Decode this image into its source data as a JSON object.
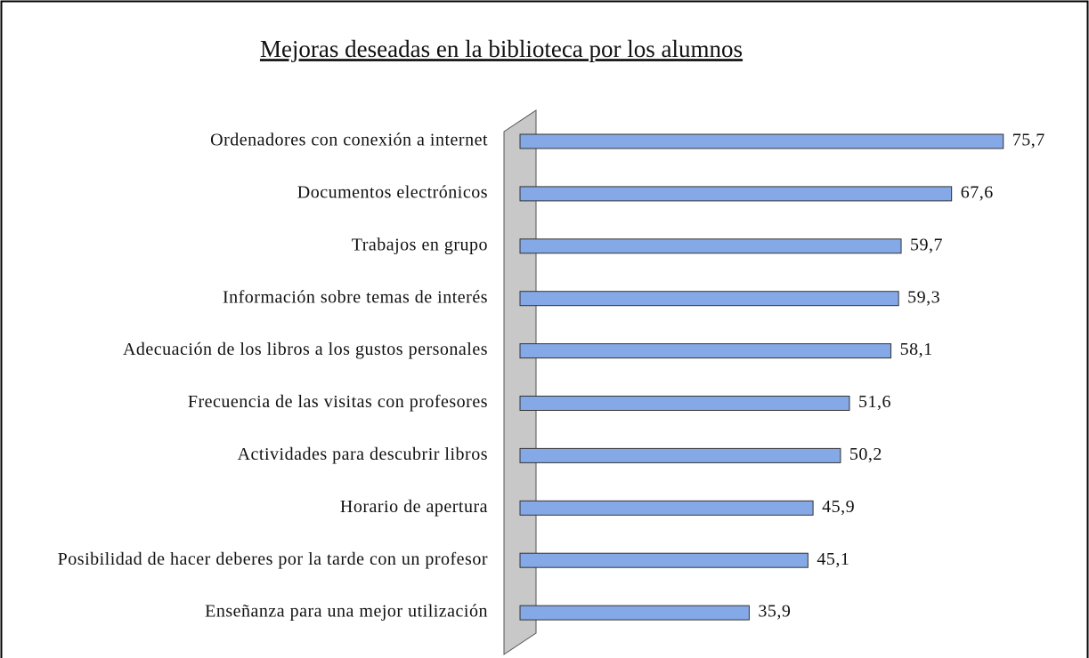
{
  "chart_data": {
    "type": "bar",
    "orientation": "horizontal",
    "title": "Mejoras deseadas en la biblioteca por los alumnos",
    "categories": [
      "Ordenadores con conexión a internet",
      "Documentos electrónicos",
      "Trabajos en grupo",
      "Información sobre temas de interés",
      "Adecuación de los libros a los gustos personales",
      "Frecuencia de las visitas con profesores",
      "Actividades para descubrir libros",
      "Horario de apertura",
      "Posibilidad de hacer deberes por la tarde con un profesor",
      "Enseñanza para una mejor utilización"
    ],
    "values": [
      75.7,
      67.6,
      59.7,
      59.3,
      58.1,
      51.6,
      50.2,
      45.9,
      45.1,
      35.9
    ],
    "value_labels": [
      "75,7",
      "67,6",
      "59,7",
      "59,3",
      "58,1",
      "51,6",
      "50,2",
      "45,9",
      "45,1",
      "35,9"
    ],
    "color": "#84a9e6"
  }
}
